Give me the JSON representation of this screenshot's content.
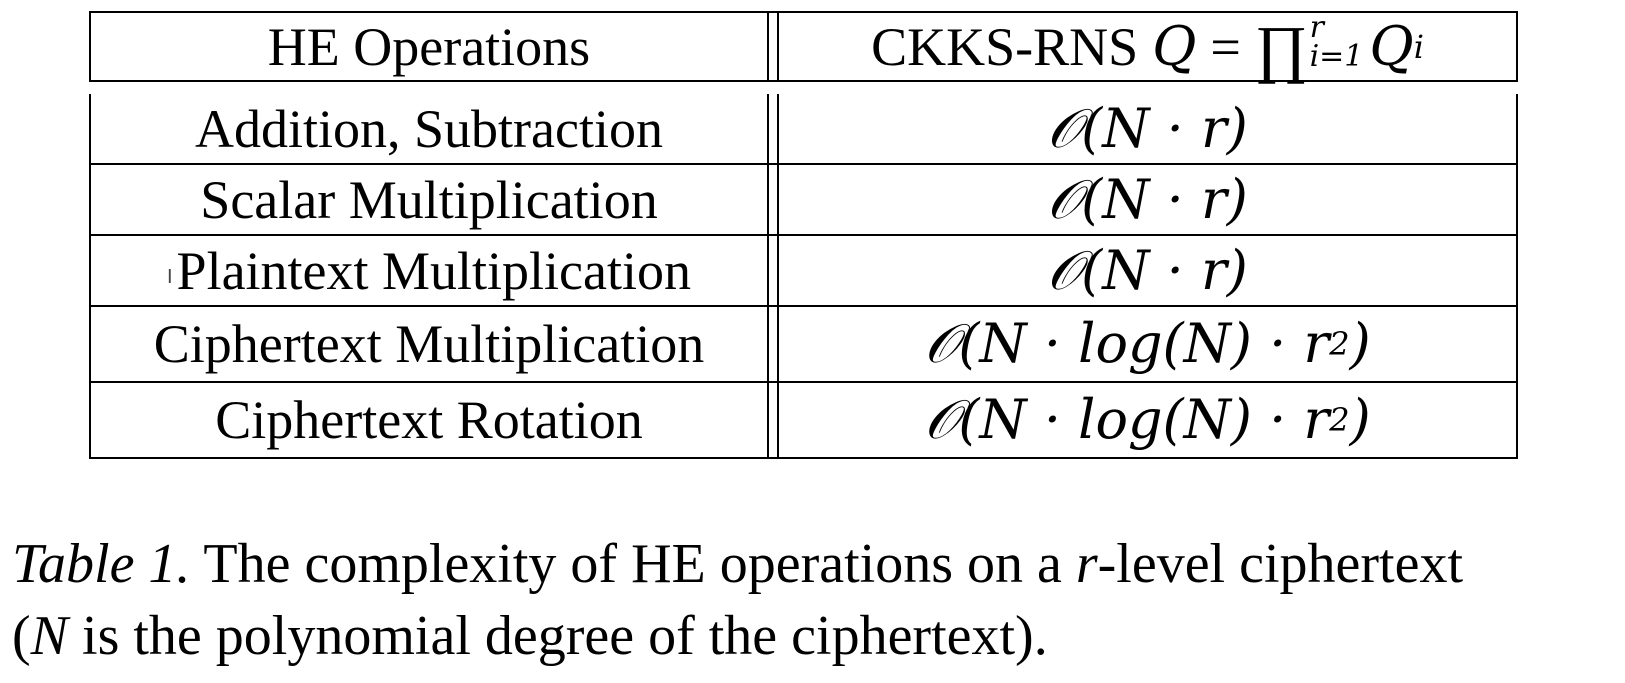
{
  "table": {
    "header": {
      "left": "HE Operations",
      "right_prefix": "CKKS-RNS",
      "right_math_lhs": "Q",
      "right_math_eq": "=",
      "right_math_op": "∏",
      "right_math_upper": "r",
      "right_math_lower": "i=1",
      "right_math_term": "Q",
      "right_math_sub": "i"
    },
    "rows": [
      {
        "operation": "Addition, Subtraction",
        "complexity": "𝒪(N · r)"
      },
      {
        "operation": "Scalar Multiplication",
        "complexity": "𝒪(N · r)"
      },
      {
        "operation": "Plaintext Multiplication",
        "complexity": "𝒪(N · r)"
      },
      {
        "operation": "Ciphertext Multiplication",
        "complexity_main": "𝒪(N · log(N) · r",
        "complexity_sup": "2",
        "complexity_end": ")"
      },
      {
        "operation": "Ciphertext Rotation",
        "complexity_main": "𝒪(N · log(N) · r",
        "complexity_sup": "2",
        "complexity_end": ")"
      }
    ],
    "cursor_glyph": "I"
  },
  "caption": {
    "label": "Table 1.",
    "text_1": " The complexity of HE operations on a ",
    "var_r": "r",
    "text_2": "-level ciphertext",
    "text_3": "(",
    "var_n": "N",
    "text_4": " is the polynomial degree of the ciphertext)."
  }
}
